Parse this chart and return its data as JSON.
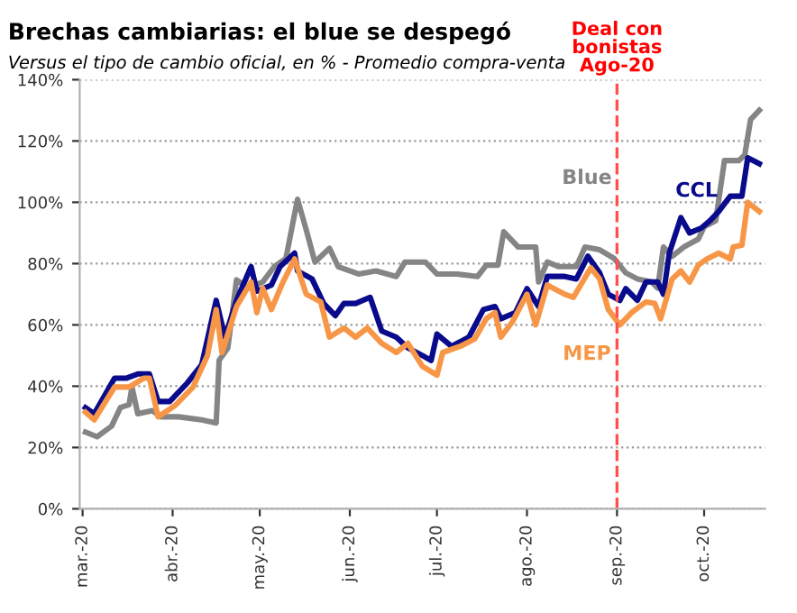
{
  "chart_data": {
    "type": "line",
    "title": "Brechas cambiarias: el blue se despegó",
    "subtitle": "Versus el tipo de cambio oficial, en % - Promedio compra-venta",
    "series": [
      {
        "name": "Blue",
        "color": "#858585",
        "x": [
          "2020-03-02",
          "2020-03-06",
          "2020-03-11",
          "2020-03-14",
          "2020-03-17",
          "2020-03-18",
          "2020-03-20",
          "2020-03-25",
          "2020-03-28",
          "2020-04-03",
          "2020-04-11",
          "2020-04-16",
          "2020-04-17",
          "2020-04-20",
          "2020-04-23",
          "2020-04-27",
          "2020-05-02",
          "2020-05-06",
          "2020-05-10",
          "2020-05-14",
          "2020-05-17",
          "2020-05-20",
          "2020-05-25",
          "2020-05-28",
          "2020-06-04",
          "2020-06-10",
          "2020-06-17",
          "2020-06-20",
          "2020-06-27",
          "2020-07-01",
          "2020-07-08",
          "2020-07-15",
          "2020-07-18",
          "2020-07-22",
          "2020-07-24",
          "2020-07-29",
          "2020-08-04",
          "2020-08-05",
          "2020-08-08",
          "2020-08-12",
          "2020-08-18",
          "2020-08-21",
          "2020-08-26",
          "2020-08-31",
          "2020-09-04",
          "2020-09-08",
          "2020-09-13",
          "2020-09-15",
          "2020-09-17",
          "2020-09-20",
          "2020-09-24",
          "2020-09-29",
          "2020-10-01",
          "2020-10-05",
          "2020-10-08",
          "2020-10-13",
          "2020-10-15",
          "2020-10-17",
          "2020-10-20"
        ],
        "values": [
          25,
          23.5,
          27,
          33,
          34,
          39.7,
          31,
          32,
          30,
          30,
          29,
          28,
          48.4,
          52.5,
          74.7,
          72,
          74,
          79,
          81.7,
          101,
          91,
          80.5,
          85,
          79,
          76.6,
          77.6,
          75.8,
          80.5,
          80.5,
          76.6,
          76.6,
          75.8,
          79.5,
          79.5,
          90.4,
          85.4,
          85.4,
          74,
          80.5,
          79,
          79,
          85.4,
          84.5,
          81.7,
          77,
          75,
          74,
          72,
          85.4,
          82.4,
          85.4,
          88,
          92,
          94,
          113.6,
          113.6,
          115.5,
          127,
          130
        ]
      },
      {
        "name": "CCL",
        "color": "#0a0a8c",
        "x": [
          "2020-03-02",
          "2020-03-05",
          "2020-03-12",
          "2020-03-16",
          "2020-03-20",
          "2020-03-24",
          "2020-03-27",
          "2020-03-31",
          "2020-04-06",
          "2020-04-11",
          "2020-04-16",
          "2020-04-19",
          "2020-04-23",
          "2020-04-28",
          "2020-04-30",
          "2020-05-05",
          "2020-05-08",
          "2020-05-13",
          "2020-05-14",
          "2020-05-19",
          "2020-05-23",
          "2020-05-27",
          "2020-05-30",
          "2020-06-03",
          "2020-06-08",
          "2020-06-12",
          "2020-06-17",
          "2020-06-21",
          "2020-06-26",
          "2020-06-29",
          "2020-07-01",
          "2020-07-06",
          "2020-07-12",
          "2020-07-17",
          "2020-07-21",
          "2020-07-23",
          "2020-07-28",
          "2020-08-01",
          "2020-08-05",
          "2020-08-08",
          "2020-08-14",
          "2020-08-18",
          "2020-08-22",
          "2020-08-26",
          "2020-08-29",
          "2020-09-02",
          "2020-09-04",
          "2020-09-08",
          "2020-09-11",
          "2020-09-15",
          "2020-09-17",
          "2020-09-19",
          "2020-09-23",
          "2020-09-26",
          "2020-09-30",
          "2020-10-03",
          "2020-10-06",
          "2020-10-10",
          "2020-10-14",
          "2020-10-16",
          "2020-10-20"
        ],
        "values": [
          33,
          31,
          42.6,
          42.6,
          44,
          44,
          35,
          35,
          41,
          47,
          68,
          56,
          68,
          79,
          71,
          73,
          79,
          83.4,
          77.6,
          75,
          67,
          63,
          67,
          67,
          69,
          58,
          56,
          52.5,
          50,
          48.4,
          57,
          53,
          56,
          65,
          66,
          62,
          64,
          71.8,
          66,
          75.8,
          75.8,
          75,
          82.4,
          77,
          70,
          68,
          71.8,
          68,
          74,
          74,
          70,
          83.4,
          95,
          90,
          91.6,
          94,
          97,
          102,
          102,
          114.5,
          112.6
        ]
      },
      {
        "name": "MEP",
        "color": "#f79646",
        "x": [
          "2020-03-02",
          "2020-03-05",
          "2020-03-12",
          "2020-03-17",
          "2020-03-22",
          "2020-03-24",
          "2020-03-27",
          "2020-04-02",
          "2020-04-08",
          "2020-04-13",
          "2020-04-16",
          "2020-04-18",
          "2020-04-23",
          "2020-04-28",
          "2020-04-30",
          "2020-05-02",
          "2020-05-05",
          "2020-05-09",
          "2020-05-13",
          "2020-05-17",
          "2020-05-22",
          "2020-05-25",
          "2020-05-30",
          "2020-06-03",
          "2020-06-07",
          "2020-06-12",
          "2020-06-17",
          "2020-06-21",
          "2020-06-26",
          "2020-07-01",
          "2020-07-03",
          "2020-07-09",
          "2020-07-14",
          "2020-07-18",
          "2020-07-21",
          "2020-07-23",
          "2020-07-27",
          "2020-08-01",
          "2020-08-04",
          "2020-08-08",
          "2020-08-14",
          "2020-08-17",
          "2020-08-23",
          "2020-08-26",
          "2020-08-29",
          "2020-09-02",
          "2020-09-06",
          "2020-09-11",
          "2020-09-14",
          "2020-09-16",
          "2020-09-20",
          "2020-09-23",
          "2020-09-26",
          "2020-09-29",
          "2020-10-02",
          "2020-10-06",
          "2020-10-10",
          "2020-10-11",
          "2020-10-14",
          "2020-10-16",
          "2020-10-20"
        ],
        "values": [
          31.5,
          29,
          39.7,
          39.7,
          42.6,
          42.6,
          30,
          33.8,
          39.7,
          50,
          65,
          51,
          66,
          74,
          64,
          72,
          65,
          74,
          81.5,
          70,
          67.5,
          56,
          59,
          56,
          59,
          54,
          51,
          54,
          46.5,
          43.6,
          51,
          53,
          55.4,
          62,
          64,
          56,
          61,
          70,
          60,
          73,
          70,
          69,
          78.6,
          75,
          65,
          60,
          64,
          67.5,
          67,
          62,
          75,
          77.6,
          74,
          79.5,
          81.5,
          83.4,
          81.5,
          85.4,
          86,
          100,
          97
        ]
      }
    ],
    "xlim": [
      "2020-02-29",
      "2020-10-22"
    ],
    "xticks": [
      {
        "value": "2020-03-01",
        "label": "mar.-20"
      },
      {
        "value": "2020-04-01",
        "label": "abr.-20"
      },
      {
        "value": "2020-05-01",
        "label": "may.-20"
      },
      {
        "value": "2020-06-01",
        "label": "jun.-20"
      },
      {
        "value": "2020-07-01",
        "label": "jul.-20"
      },
      {
        "value": "2020-08-01",
        "label": "ago.-20"
      },
      {
        "value": "2020-09-01",
        "label": "sep.-20"
      },
      {
        "value": "2020-10-01",
        "label": "oct.-20"
      }
    ],
    "ylim": [
      0,
      140
    ],
    "yticks": [
      {
        "value": 0,
        "label": "0%"
      },
      {
        "value": 20,
        "label": "20%"
      },
      {
        "value": 40,
        "label": "40%"
      },
      {
        "value": 60,
        "label": "60%"
      },
      {
        "value": 80,
        "label": "80%"
      },
      {
        "value": 100,
        "label": "100%"
      },
      {
        "value": 120,
        "label": "120%"
      },
      {
        "value": 140,
        "label": "140%"
      }
    ],
    "ref_lines": [
      {
        "axis": "x",
        "value": "2020-09-01",
        "label": "Deal con\nbonistas\nAgo-20",
        "color": "#ff5050",
        "line_style": "dashed"
      }
    ],
    "grid": "y",
    "legend": false,
    "marker": "none",
    "line_style": "solid"
  }
}
